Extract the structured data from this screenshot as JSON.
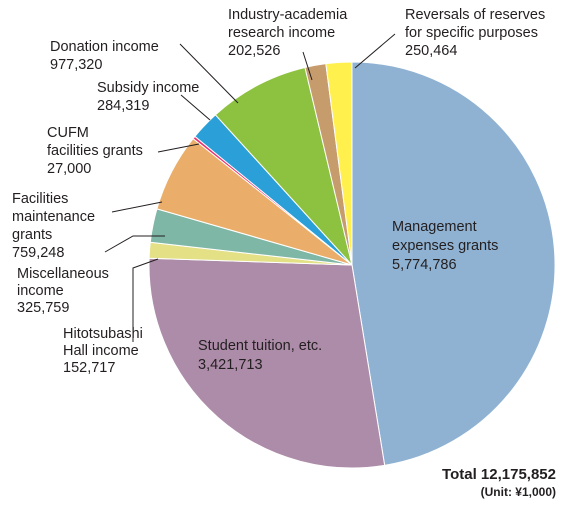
{
  "chart_data": {
    "type": "pie",
    "unit": "(Unit: ¥1,000)",
    "total_label": "Total 12,175,852",
    "slices": [
      {
        "lines": [
          "Management",
          "expenses grants"
        ],
        "value_text": "5,774,786",
        "value": 5774786,
        "color": "#8fb2d3"
      },
      {
        "lines": [
          "Student tuition, etc."
        ],
        "value_text": "3,421,713",
        "value": 3421713,
        "color": "#ad8ca9"
      },
      {
        "lines": [
          "Hitotsubashi",
          "Hall income"
        ],
        "value_text": "152,717",
        "value": 152717,
        "color": "#e3e086"
      },
      {
        "lines": [
          "Miscellaneous",
          "income"
        ],
        "value_text": "325,759",
        "value": 325759,
        "color": "#7fb7a7"
      },
      {
        "lines": [
          "Facilities",
          "maintenance",
          "grants"
        ],
        "value_text": "759,248",
        "value": 759248,
        "color": "#eaae6a"
      },
      {
        "lines": [
          "CUFM",
          "facilities grants"
        ],
        "value_text": "27,000",
        "value": 27000,
        "color": "#e8336f"
      },
      {
        "lines": [
          "Subsidy income"
        ],
        "value_text": "284,319",
        "value": 284319,
        "color": "#2a9fd8"
      },
      {
        "lines": [
          "Donation income"
        ],
        "value_text": "977,320",
        "value": 977320,
        "color": "#8cc23f"
      },
      {
        "lines": [
          "Industry-academia",
          "research income"
        ],
        "value_text": "202,526",
        "value": 202526,
        "color": "#c69c6d"
      },
      {
        "lines": [
          "Reversals of reserves",
          "for specific purposes"
        ],
        "value_text": "250,464",
        "value": 250464,
        "color": "#fff04e"
      }
    ]
  }
}
